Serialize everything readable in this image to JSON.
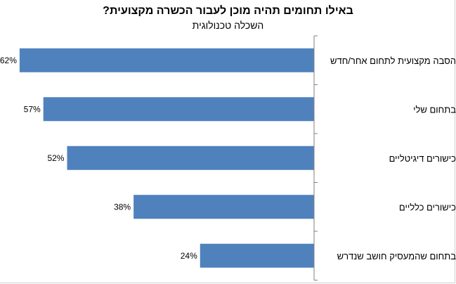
{
  "chart_data": {
    "type": "bar",
    "orientation": "horizontal",
    "title": "באילו תחומים תהיה מוכן לעבור הכשרה מקצועית?",
    "subtitle": "השכלה טכנולוגית",
    "categories": [
      "הסבה מקצועית לתחום אחר/חדש",
      "בתחום שלי",
      "כישורים דיגיטליים",
      "כישורים כלליים",
      "בתחום שהמעסיק חושב שנדרש"
    ],
    "values": [
      62,
      57,
      52,
      38,
      24
    ],
    "value_labels": [
      "62%",
      "57%",
      "52%",
      "38%",
      "24%"
    ],
    "unit": "%",
    "bar_color": "#4f81bd",
    "grid": false,
    "legend": "none"
  }
}
